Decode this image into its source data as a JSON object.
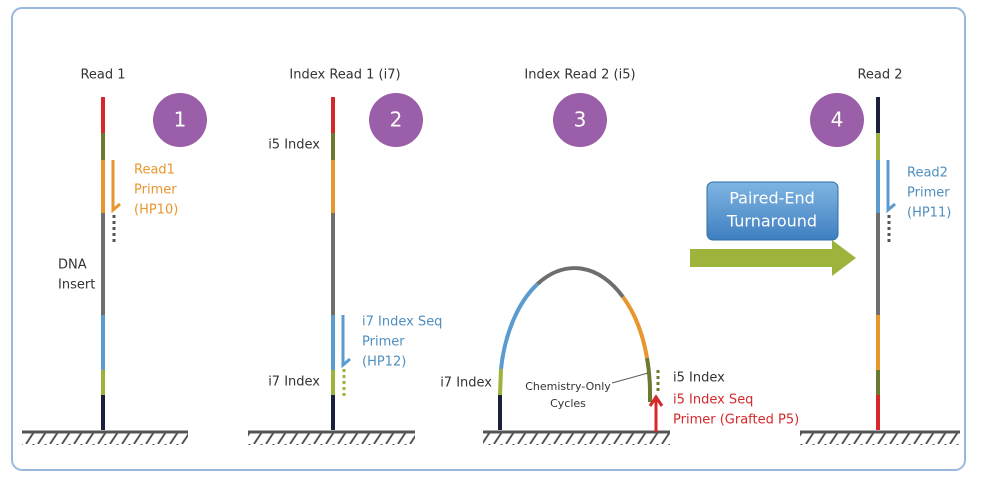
{
  "panels": [
    {
      "title": "Read 1",
      "step": "1",
      "labels": [
        "DNA",
        "Insert"
      ],
      "primer": [
        "Read1",
        "Primer",
        "(HP10)"
      ]
    },
    {
      "title": "Index Read 1 (i7)",
      "step": "2",
      "labels": [
        "i5 Index",
        "i7 Index"
      ],
      "primer": [
        "i7 Index Seq",
        "Primer",
        "(HP12)"
      ]
    },
    {
      "title": "Index Read 2 (i5)",
      "step": "3",
      "labels": [
        "i7 Index",
        "i5 Index",
        "Chemistry-Only",
        "Cycles"
      ],
      "primer": [
        "i5 Index Seq",
        "Primer (Grafted P5)"
      ]
    },
    {
      "title": "Read 2",
      "step": "4",
      "primer": [
        "Read2",
        "Primer",
        "(HP11)"
      ]
    }
  ],
  "turnaround": [
    "Paired-End",
    "Turnaround"
  ]
}
